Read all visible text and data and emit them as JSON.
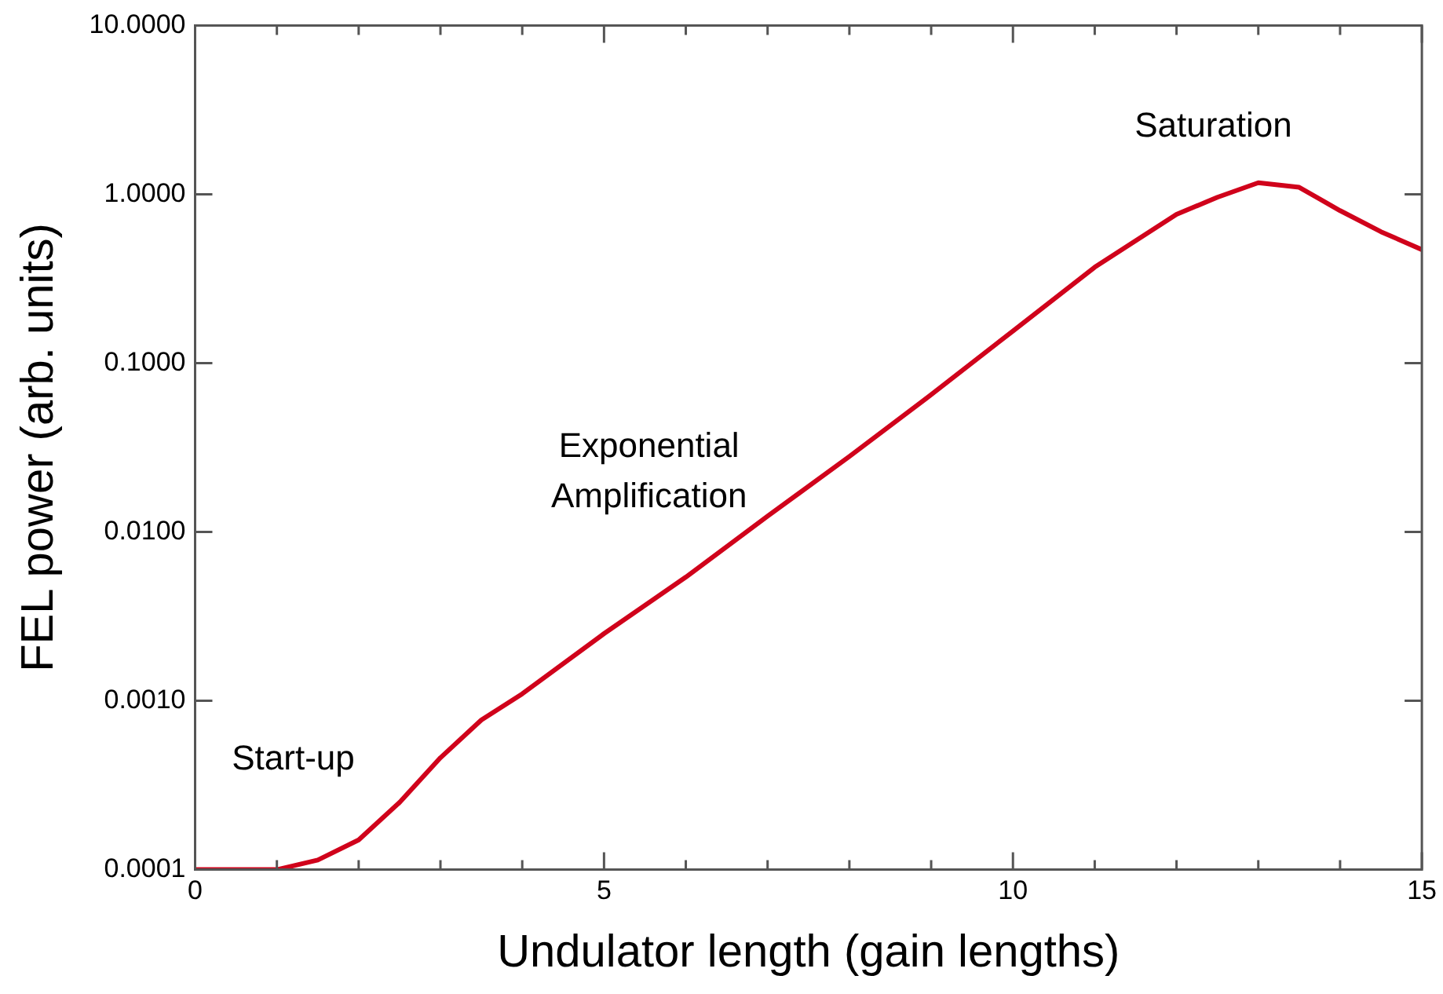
{
  "chart_data": {
    "type": "line",
    "xlabel": "Undulator length (gain lengths)",
    "ylabel": "FEL power (arb. units)",
    "log": "y",
    "xlim": [
      0,
      15
    ],
    "xticks": [
      0,
      {
        "value": 1,
        "label": null
      },
      {
        "value": 2,
        "label": null
      },
      {
        "value": 3,
        "label": null
      },
      {
        "value": 4,
        "label": null
      },
      5,
      {
        "value": 6,
        "label": null
      },
      {
        "value": 7,
        "label": null
      },
      {
        "value": 8,
        "label": null
      },
      {
        "value": 9,
        "label": null
      },
      10,
      {
        "value": 11,
        "label": null
      },
      {
        "value": 12,
        "label": null
      },
      {
        "value": 13,
        "label": null
      },
      {
        "value": 14,
        "label": null
      },
      15
    ],
    "ylim": [
      0.0001,
      10
    ],
    "yticks": [
      {
        "value": 0.0001,
        "label": "0.0001"
      },
      {
        "value": 0.001,
        "label": "0.0010"
      },
      {
        "value": 0.01,
        "label": "0.0100"
      },
      {
        "value": 0.1,
        "label": "0.1000"
      },
      {
        "value": 1,
        "label": "1.0000"
      },
      {
        "value": 10,
        "label": "10.0000"
      }
    ],
    "grid": false,
    "legend": false,
    "marker": "none",
    "line_style": "solid",
    "x": [
      0,
      0.5,
      1,
      1.5,
      2,
      2.5,
      3,
      3.5,
      4,
      5,
      6,
      7,
      8,
      9,
      10,
      11,
      12,
      12.5,
      13,
      13.5,
      14,
      14.5,
      15
    ],
    "series": [
      {
        "color": "#d0021b",
        "values": [
          0.0001,
          0.0001,
          0.0001,
          0.000114,
          0.00015,
          0.00025,
          0.00046,
          0.00077,
          0.0011,
          0.0025,
          0.0054,
          0.0124,
          0.028,
          0.065,
          0.155,
          0.37,
          0.76,
          0.96,
          1.17,
          1.1,
          0.8,
          0.6,
          0.47
        ]
      }
    ],
    "annotations": [
      "Start-up",
      "Exponential\nAmplification",
      "Saturation"
    ]
  }
}
